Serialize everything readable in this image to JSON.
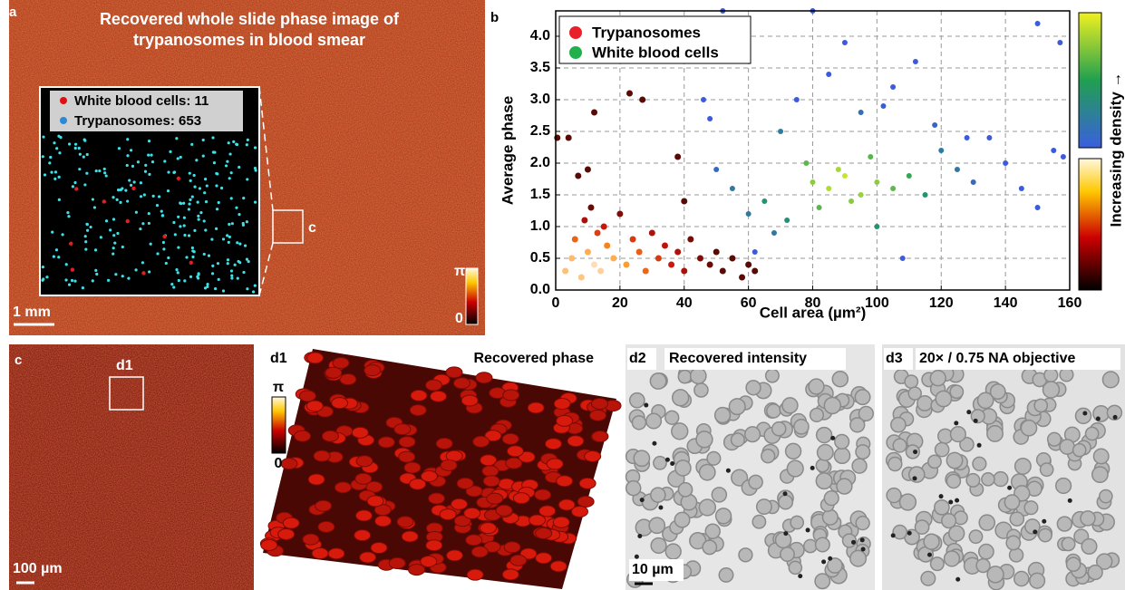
{
  "panels": {
    "a": {
      "label": "a",
      "title_lines": [
        "Recovered whole slide phase image of",
        "trypanosomes in blood smear"
      ],
      "inset_legend": [
        "White blood cells: 11",
        "Trypanosomes: 653"
      ],
      "box_label": "c",
      "scale_bar": "1 mm",
      "colorbar_labels": [
        "π",
        "0"
      ]
    },
    "c": {
      "label": "c",
      "box_label": "d1",
      "scale_bar": "100 µm"
    },
    "d1": {
      "label": "d1",
      "title": "Recovered phase",
      "colorbar_labels": [
        "π",
        "0"
      ]
    },
    "d2": {
      "label": "d2",
      "title": "Recovered intensity",
      "scale_bar": "10 µm"
    },
    "d3": {
      "label": "d3",
      "title": "20× / 0.75 NA objective"
    }
  },
  "chart_data": {
    "type": "scatter",
    "panel_label": "b",
    "x_label": "Cell area (µm²)",
    "y_label": "Average phase",
    "xlim": [
      0,
      160
    ],
    "xticks": [
      0,
      20,
      40,
      60,
      80,
      100,
      120,
      140,
      160
    ],
    "ylim": [
      0,
      4.4
    ],
    "yticks": [
      {
        "value": 0,
        "label": "0.0"
      },
      0.5,
      {
        "value": 1,
        "label": "1.0"
      },
      1.5,
      {
        "value": 2,
        "label": "2.0"
      },
      2.5,
      {
        "value": 3,
        "label": "3.0"
      },
      3.5,
      {
        "value": 4,
        "label": "4.0"
      }
    ],
    "grid": true,
    "legend": "upper left",
    "colorbar_label": "Increasing density →",
    "series": [
      {
        "name": "Trypanosomes",
        "color": "#e8202a",
        "x": [
          3,
          5,
          6,
          8,
          9,
          10,
          11,
          12,
          13,
          14,
          15,
          16,
          18,
          20,
          22,
          24,
          26,
          28,
          30,
          32,
          34,
          36,
          38,
          40,
          42,
          45,
          48,
          50,
          52,
          55,
          58,
          60,
          62,
          7,
          10,
          23,
          38,
          4,
          12,
          0.5,
          27,
          40
        ],
        "values": [
          0.3,
          0.5,
          0.8,
          0.2,
          1.1,
          0.6,
          1.3,
          0.4,
          0.9,
          0.3,
          1.0,
          0.7,
          0.5,
          1.2,
          0.4,
          0.8,
          0.6,
          0.3,
          0.9,
          0.5,
          0.7,
          0.4,
          0.6,
          0.3,
          0.8,
          0.5,
          0.4,
          0.6,
          0.3,
          0.5,
          0.2,
          0.4,
          0.3,
          1.8,
          1.9,
          3.1,
          2.1,
          2.4,
          2.8,
          2.4,
          3.0,
          1.4
        ]
      },
      {
        "name": "White blood cells",
        "color": "#22b04a",
        "x": [
          80,
          85,
          90,
          95,
          100,
          88,
          92,
          78,
          82,
          98,
          105,
          110,
          115,
          120,
          125,
          130,
          70,
          72,
          65,
          60,
          55,
          50,
          48,
          135,
          140,
          145,
          150,
          155,
          158,
          75,
          85,
          95,
          105,
          112,
          118,
          62,
          68,
          100,
          108,
          90,
          80,
          46,
          52,
          150,
          157,
          102,
          128
        ],
        "values": [
          1.7,
          1.6,
          1.8,
          1.5,
          1.7,
          1.9,
          1.4,
          2.0,
          1.3,
          2.1,
          1.6,
          1.8,
          1.5,
          2.2,
          1.9,
          1.7,
          2.5,
          1.1,
          1.4,
          1.2,
          1.6,
          1.9,
          2.7,
          2.4,
          2.0,
          1.6,
          1.3,
          2.2,
          2.1,
          3.0,
          3.4,
          2.8,
          3.2,
          3.6,
          2.6,
          0.6,
          0.9,
          1.0,
          0.5,
          3.9,
          4.4,
          3.0,
          4.4,
          4.2,
          3.9,
          2.9,
          2.4
        ]
      }
    ]
  }
}
